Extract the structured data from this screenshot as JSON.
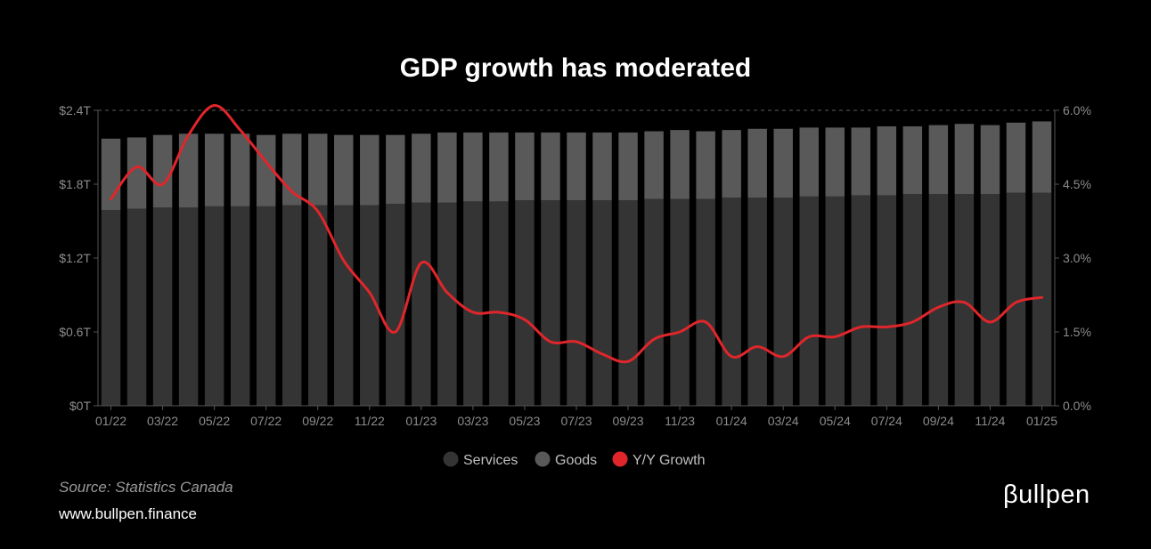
{
  "chart_data": {
    "type": "bar",
    "stacked": true,
    "title": "GDP growth has moderated",
    "categories": [
      "01/22",
      "02/22",
      "03/22",
      "04/22",
      "05/22",
      "06/22",
      "07/22",
      "08/22",
      "09/22",
      "10/22",
      "11/22",
      "12/22",
      "01/23",
      "02/23",
      "03/23",
      "04/23",
      "05/23",
      "06/23",
      "07/23",
      "08/23",
      "09/23",
      "10/23",
      "11/23",
      "12/23",
      "01/24",
      "02/24",
      "03/24",
      "04/24",
      "05/24",
      "06/24",
      "07/24",
      "08/24",
      "09/24",
      "10/24",
      "11/24",
      "12/24",
      "01/25"
    ],
    "x_tick_labels": [
      "01/22",
      "03/22",
      "05/22",
      "07/22",
      "09/22",
      "11/22",
      "01/23",
      "03/23",
      "05/23",
      "07/23",
      "09/23",
      "11/23",
      "01/24",
      "03/24",
      "05/24",
      "07/24",
      "09/24",
      "11/24",
      "01/25"
    ],
    "series": [
      {
        "name": "Services",
        "axis": "left",
        "color": "#343434",
        "values": [
          1.59,
          1.6,
          1.61,
          1.61,
          1.62,
          1.62,
          1.62,
          1.63,
          1.63,
          1.63,
          1.63,
          1.64,
          1.65,
          1.65,
          1.66,
          1.66,
          1.67,
          1.67,
          1.67,
          1.67,
          1.67,
          1.68,
          1.68,
          1.68,
          1.69,
          1.69,
          1.69,
          1.7,
          1.7,
          1.71,
          1.71,
          1.72,
          1.72,
          1.72,
          1.72,
          1.73,
          1.73
        ]
      },
      {
        "name": "Goods",
        "axis": "left",
        "color": "#595959",
        "values": [
          0.58,
          0.58,
          0.59,
          0.6,
          0.59,
          0.59,
          0.58,
          0.58,
          0.58,
          0.57,
          0.57,
          0.56,
          0.56,
          0.57,
          0.56,
          0.56,
          0.55,
          0.55,
          0.55,
          0.55,
          0.55,
          0.55,
          0.56,
          0.55,
          0.55,
          0.56,
          0.56,
          0.56,
          0.56,
          0.55,
          0.56,
          0.55,
          0.56,
          0.57,
          0.56,
          0.57,
          0.58
        ]
      },
      {
        "name": "Y/Y Growth",
        "axis": "right",
        "type": "line",
        "color": "#e0262b",
        "values": [
          4.2,
          4.85,
          4.5,
          5.5,
          6.1,
          5.6,
          4.95,
          4.35,
          3.95,
          2.95,
          2.3,
          1.5,
          2.9,
          2.3,
          1.9,
          1.9,
          1.75,
          1.3,
          1.3,
          1.05,
          0.9,
          1.35,
          1.5,
          1.7,
          1.0,
          1.2,
          1.0,
          1.4,
          1.4,
          1.6,
          1.6,
          1.7,
          2.0,
          2.1,
          1.7,
          2.1,
          2.2
        ]
      }
    ],
    "y_left": {
      "ticks": [
        "$0T",
        "$0.6T",
        "$1.2T",
        "$1.8T",
        "$2.4T"
      ],
      "tick_values": [
        0,
        0.6,
        1.2,
        1.8,
        2.4
      ],
      "range": [
        0,
        2.4
      ]
    },
    "y_right": {
      "ticks": [
        "0.0%",
        "1.5%",
        "3.0%",
        "4.5%",
        "6.0%"
      ],
      "tick_values": [
        0,
        1.5,
        3.0,
        4.5,
        6.0
      ],
      "range": [
        0,
        6.0
      ]
    },
    "legend": {
      "position": "bottom",
      "items": [
        "Services",
        "Goods",
        "Y/Y Growth"
      ]
    },
    "grid": false
  },
  "footer": {
    "source": "Source: Statistics Canada",
    "url": "www.bullpen.finance"
  },
  "logo": {
    "text": "βullpen"
  },
  "colors": {
    "background": "#000000",
    "services": "#343434",
    "goods": "#595959",
    "growth_line": "#e0262b",
    "tick_text": "#8c8c8c"
  }
}
